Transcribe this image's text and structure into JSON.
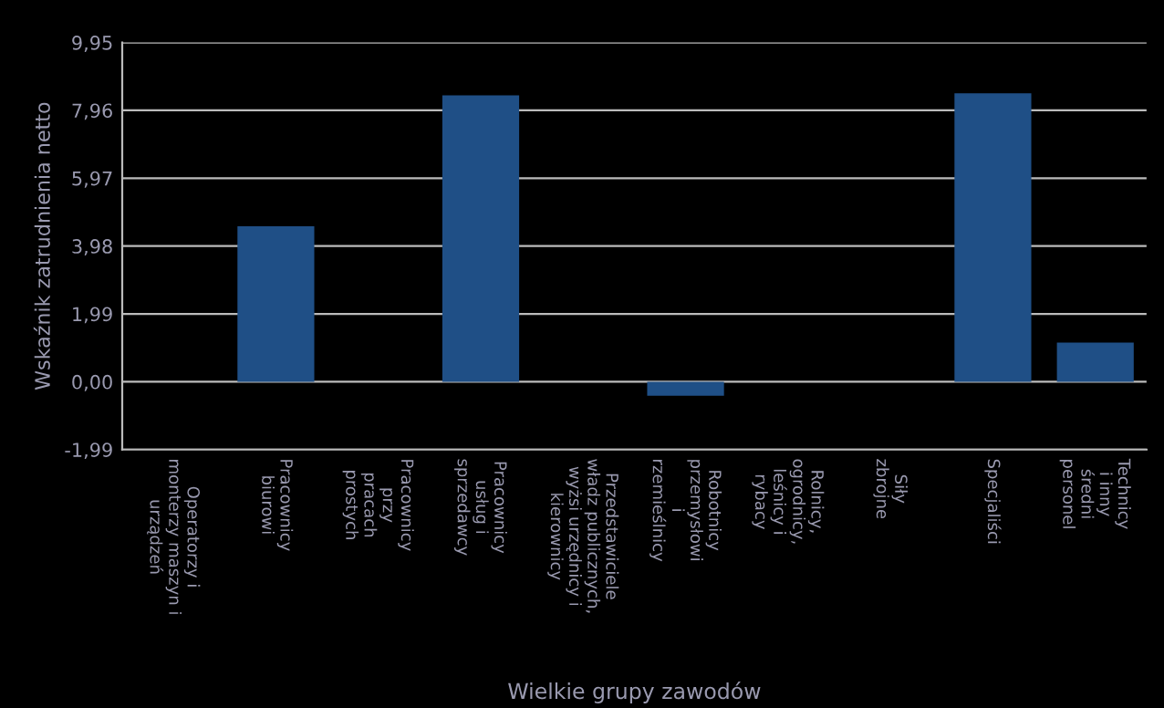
{
  "chart_data": {
    "type": "bar",
    "xlabel": "Wielkie grupy zawodów",
    "ylabel": "Wskaźnik zatrudnienia netto",
    "categories": [
      "Operatorzy i\nmonterzy maszyn i\nurządzeń",
      "Pracownicy\nbiurowi",
      "Pracownicy\nprzy\npracach\nprostych",
      "Pracownicy\nusług i\nsprzedawcy",
      "Przedstawiciele\nwładz publicznych,\nwyżsi urzędnicy i\nkierownicy",
      "Robotnicy\nprzemysłowi\ni\nrzemieślnicy",
      "Rolnicy,\nogrodnicy,\nleśnicy i\nrybacy",
      "Siły\nzbrojne",
      "Specjaliści",
      "Technicy\ni inny\nśredni\npersonel"
    ],
    "values": [
      0,
      4.56,
      0,
      8.4,
      0,
      -0.41,
      0,
      0,
      8.46,
      1.15
    ],
    "color": "#1f4f86",
    "ylim": [
      -1.99,
      9.95
    ],
    "yticks": [
      {
        "value": -1.99,
        "label": "-1,99"
      },
      {
        "value": 0,
        "label": "0,00"
      },
      {
        "value": 1.99,
        "label": "1,99"
      },
      {
        "value": 3.98,
        "label": "3,98"
      },
      {
        "value": 5.97,
        "label": "5,97"
      },
      {
        "value": 7.96,
        "label": "7,96"
      },
      {
        "value": 9.95,
        "label": "9,95"
      }
    ],
    "grid": "y"
  }
}
